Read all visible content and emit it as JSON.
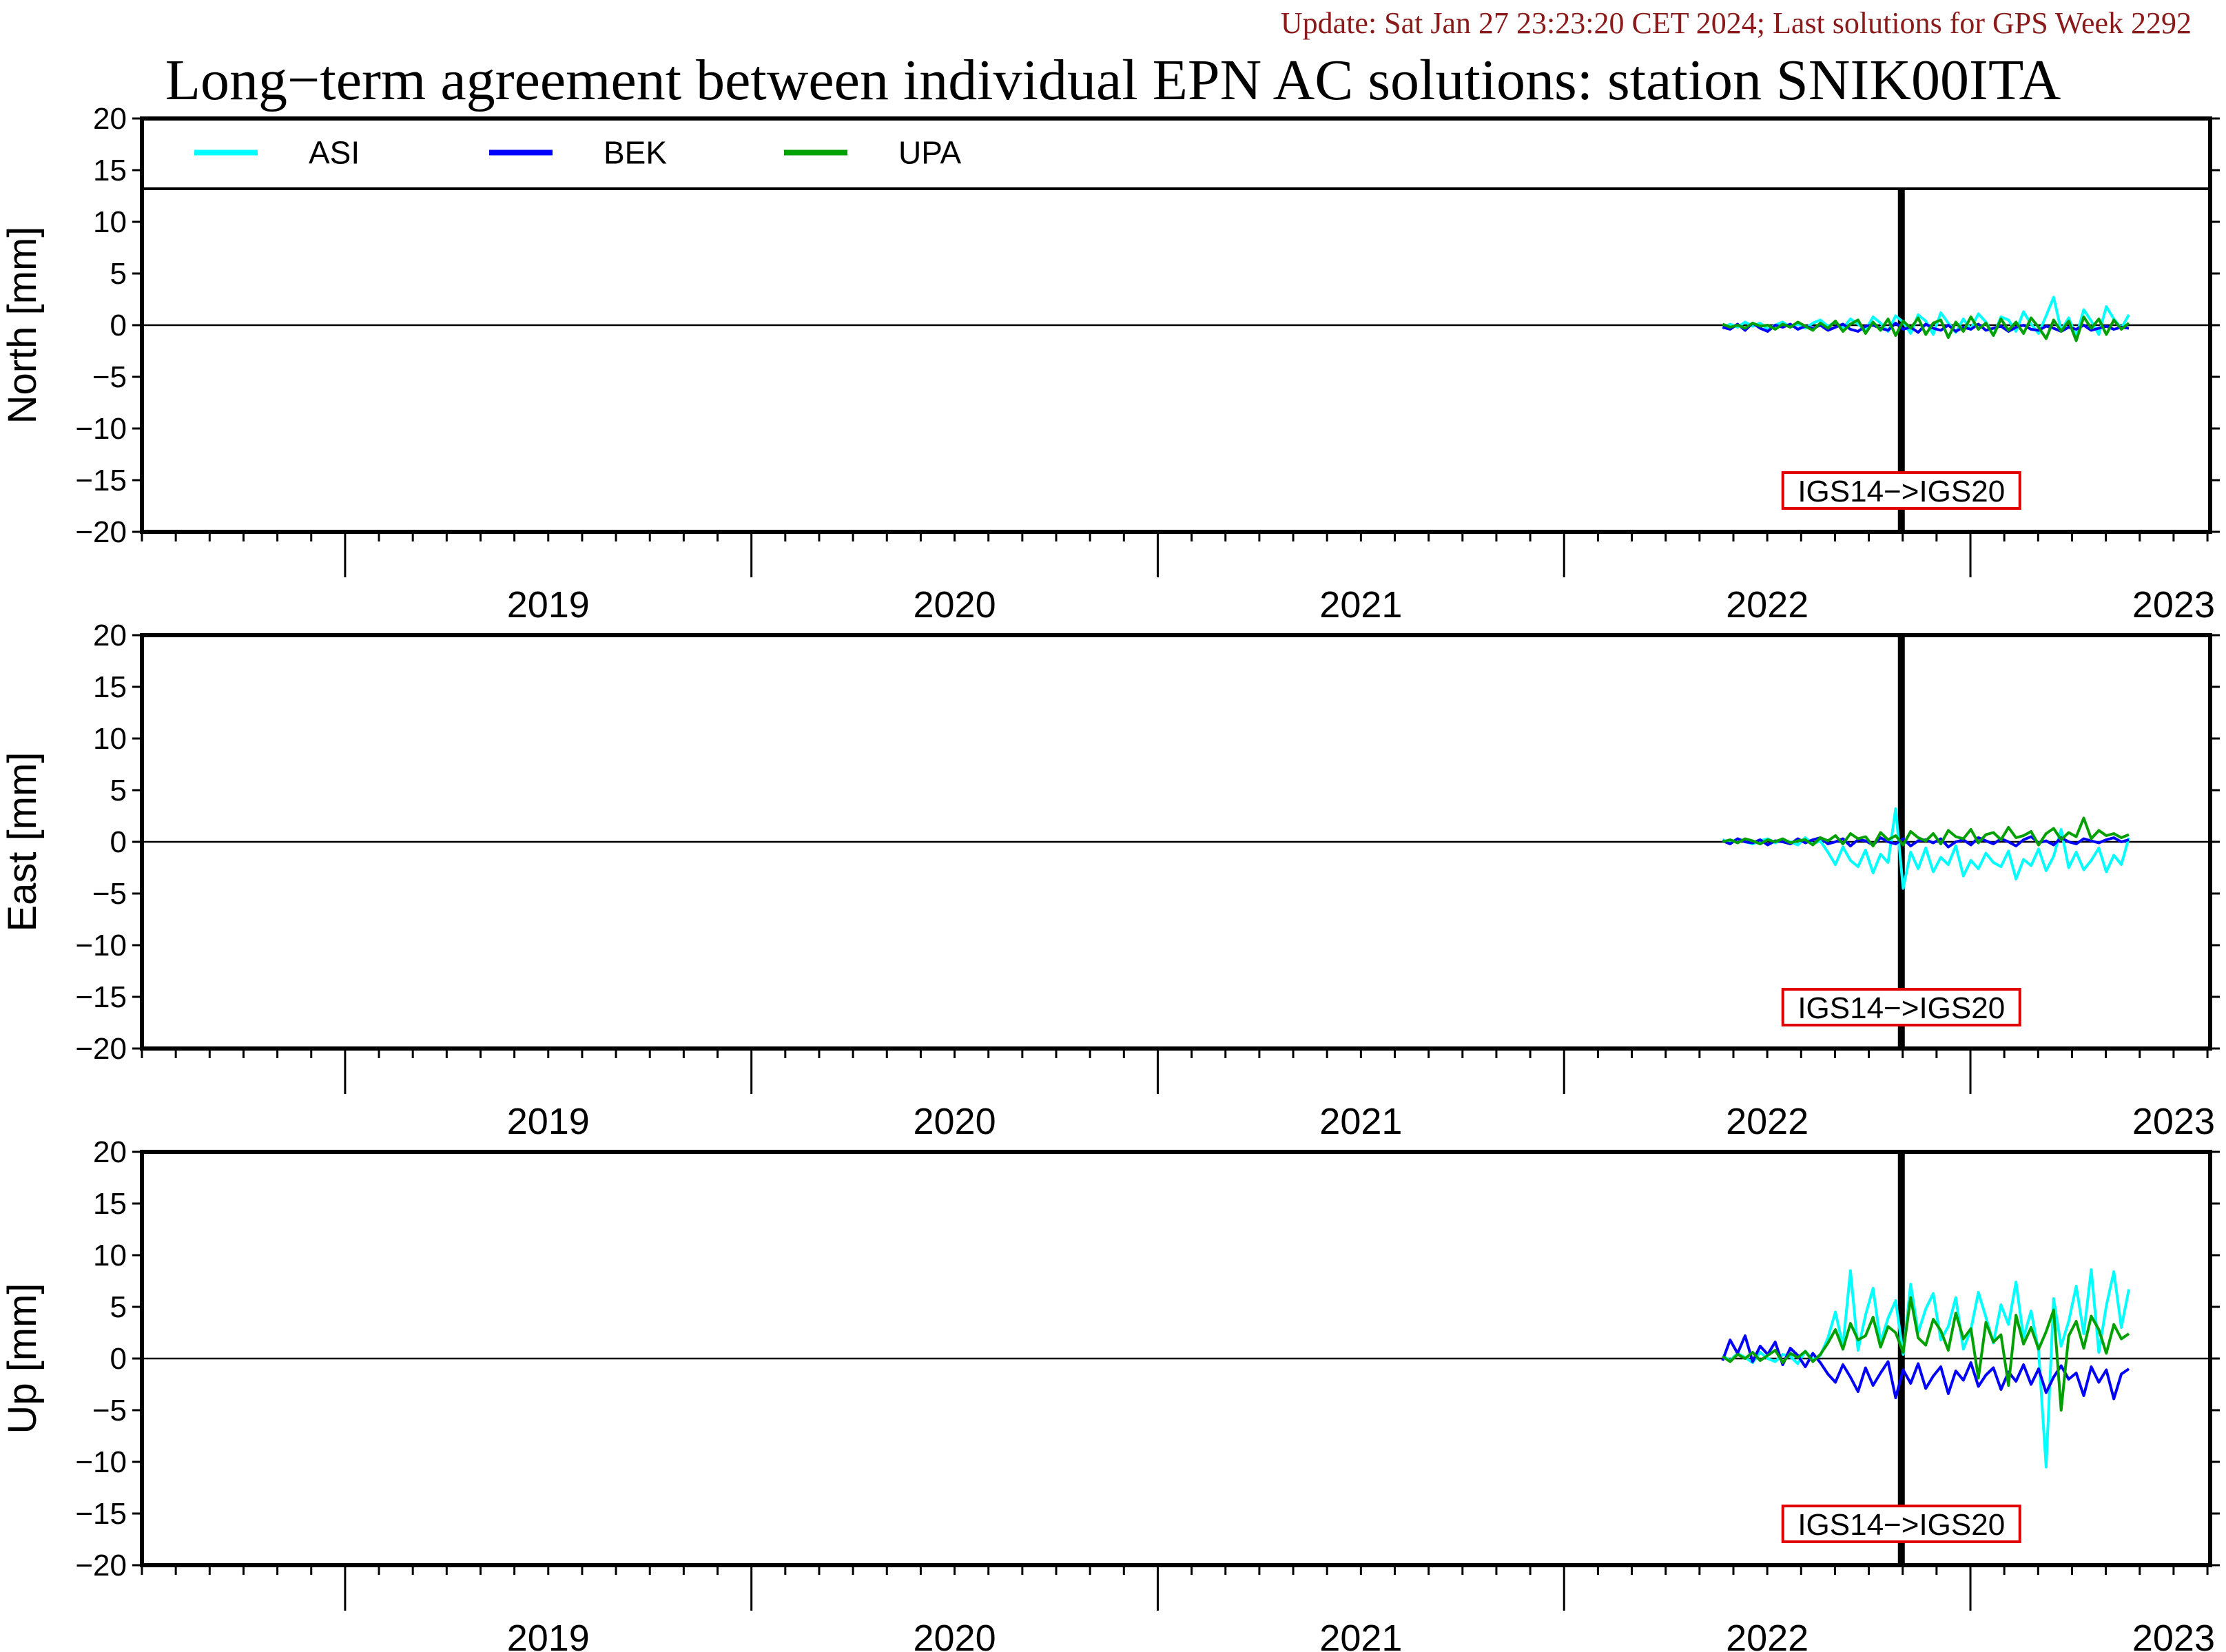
{
  "header": {
    "update": "Update: Sat Jan 27 23:23:20 CET 2024; Last solutions for GPS Week 2292",
    "title": "Long−term agreement between individual EPN AC solutions: station SNIK00ITA"
  },
  "legend": [
    {
      "name": "ASI",
      "color": "#00ffff"
    },
    {
      "name": "BEK",
      "color": "#0000ff"
    },
    {
      "name": "UPA",
      "color": "#00a000"
    }
  ],
  "annotation": {
    "label": "IGS14−>IGS20",
    "date": 2022.83,
    "box_color": "#e00000"
  },
  "chart_data": [
    {
      "type": "line",
      "ylabel": "North [mm]",
      "ylim": [
        -20,
        20
      ],
      "xlim": [
        2018.5,
        2023.59
      ],
      "yticks": [
        20,
        15,
        10,
        5,
        0,
        -5,
        -10,
        -15,
        -20
      ],
      "ytick_labels": [
        "20",
        "15",
        "10",
        "5",
        "0",
        "−5",
        "−10",
        "−15",
        "−20"
      ],
      "xtick_labels": [
        "2019",
        "2020",
        "2021",
        "2022",
        "2023"
      ],
      "x_start": 2022.39,
      "x_end": 2023.39,
      "series": [
        {
          "name": "ASI",
          "values": [
            -0.3,
            0.1,
            -0.2,
            0.3,
            -0.1,
            0.2,
            -0.4,
            0.0,
            0.3,
            -0.2,
            0.1,
            -0.3,
            0.2,
            0.5,
            -0.1,
            0.3,
            -0.3,
            0.6,
            0.1,
            -0.5,
            0.8,
            0.2,
            -0.6,
            0.9,
            0.3,
            -0.8,
            1.0,
            0.4,
            -0.9,
            1.2,
            0.2,
            -0.7,
            0.6,
            -0.4,
            1.1,
            0.3,
            -1.0,
            0.8,
            0.5,
            -0.6,
            1.3,
            0.1,
            -0.8,
            0.9,
            2.7,
            -0.5,
            0.7,
            -1.1,
            1.5,
            0.4,
            -0.9,
            1.8,
            0.6,
            -0.3,
            1.0
          ]
        },
        {
          "name": "BEK",
          "values": [
            -0.2,
            -0.4,
            0.1,
            -0.5,
            0.2,
            -0.3,
            -0.6,
            0.0,
            -0.2,
            0.1,
            -0.4,
            -0.1,
            -0.3,
            0.0,
            -0.5,
            -0.2,
            0.1,
            -0.4,
            -0.6,
            -0.1,
            0.0,
            -0.3,
            -0.5,
            0.2,
            -0.4,
            -0.2,
            -0.7,
            0.1,
            -0.3,
            -0.5,
            0.0,
            -0.6,
            -0.2,
            -0.4,
            0.1,
            -0.5,
            -0.3,
            -0.1,
            -0.6,
            -0.2,
            0.0,
            -0.4,
            -0.5,
            -0.1,
            -0.3,
            -0.6,
            -0.2,
            -0.4,
            0.0,
            -0.5,
            -0.3,
            -0.1,
            -0.4,
            -0.2,
            -0.3
          ]
        },
        {
          "name": "UPA",
          "values": [
            0.1,
            -0.2,
            0.0,
            -0.3,
            0.2,
            -0.1,
            0.0,
            -0.4,
            0.1,
            -0.2,
            0.3,
            -0.1,
            -0.5,
            0.2,
            -0.3,
            0.4,
            -0.6,
            0.1,
            0.5,
            -0.8,
            0.3,
            -0.5,
            0.6,
            -1.0,
            0.4,
            -0.3,
            0.7,
            -0.9,
            0.2,
            0.5,
            -1.2,
            0.3,
            -0.6,
            0.8,
            -0.4,
            0.2,
            -1.0,
            0.6,
            -0.5,
            0.3,
            -0.8,
            0.7,
            -0.2,
            -1.3,
            0.5,
            -0.6,
            0.4,
            -1.5,
            0.8,
            -0.3,
            0.6,
            -0.9,
            0.5,
            -0.4,
            0.2
          ]
        }
      ]
    },
    {
      "type": "line",
      "ylabel": "East [mm]",
      "ylim": [
        -20,
        20
      ],
      "xlim": [
        2018.5,
        2023.59
      ],
      "yticks": [
        20,
        15,
        10,
        5,
        0,
        -5,
        -10,
        -15,
        -20
      ],
      "ytick_labels": [
        "20",
        "15",
        "10",
        "5",
        "0",
        "−5",
        "−10",
        "−15",
        "−20"
      ],
      "xtick_labels": [
        "2019",
        "2020",
        "2021",
        "2022",
        "2023"
      ],
      "x_start": 2022.39,
      "x_end": 2023.39,
      "series": [
        {
          "name": "ASI",
          "values": [
            0.2,
            -0.1,
            0.3,
            0.0,
            -0.2,
            0.1,
            0.3,
            -0.1,
            0.2,
            0.0,
            -0.3,
            0.4,
            -0.2,
            0.1,
            -1.0,
            -2.2,
            -0.5,
            -1.8,
            -2.4,
            -0.8,
            -3.0,
            -1.2,
            -2.0,
            3.2,
            -4.5,
            -1.0,
            -2.6,
            -0.6,
            -2.9,
            -1.5,
            -2.2,
            -0.4,
            -3.3,
            -1.8,
            -2.6,
            -1.1,
            -2.0,
            -2.4,
            -0.9,
            -3.6,
            -1.7,
            -2.3,
            -0.7,
            -2.8,
            -1.4,
            1.2,
            -2.5,
            -1.0,
            -2.7,
            -1.8,
            -0.6,
            -2.9,
            -1.3,
            -2.2,
            0.4
          ]
        },
        {
          "name": "BEK",
          "values": [
            0.1,
            -0.2,
            0.3,
            0.0,
            -0.1,
            0.2,
            -0.3,
            0.1,
            0.0,
            -0.2,
            0.3,
            -0.1,
            0.2,
            0.4,
            -0.2,
            0.0,
            0.3,
            -0.4,
            0.2,
            0.1,
            -0.3,
            0.4,
            0.0,
            -0.2,
            0.3,
            -0.4,
            0.1,
            0.2,
            -0.1,
            0.3,
            -0.5,
            0.0,
            0.2,
            -0.3,
            0.4,
            0.1,
            -0.2,
            0.3,
            0.0,
            -0.4,
            0.2,
            0.5,
            -0.1,
            0.1,
            -0.3,
            0.4,
            0.0,
            -0.2,
            0.3,
            0.1,
            -0.1,
            0.2,
            0.4,
            0.0,
            0.2
          ]
        },
        {
          "name": "UPA",
          "values": [
            0.0,
            0.2,
            -0.1,
            0.3,
            0.1,
            -0.2,
            0.2,
            0.0,
            0.3,
            -0.1,
            0.1,
            0.2,
            -0.3,
            0.4,
            0.1,
            0.6,
            -0.2,
            0.8,
            0.3,
            0.5,
            -0.4,
            0.9,
            0.2,
            0.6,
            -0.3,
            1.0,
            0.4,
            0.1,
            0.8,
            -0.2,
            1.1,
            0.5,
            0.3,
            1.2,
            -0.1,
            0.7,
            0.9,
            0.2,
            1.4,
            0.4,
            0.6,
            1.0,
            -0.3,
            0.8,
            1.3,
            0.2,
            0.9,
            0.5,
            2.3,
            0.3,
            1.1,
            0.6,
            0.8,
            0.4,
            0.7
          ]
        }
      ]
    },
    {
      "type": "line",
      "ylabel": "Up [mm]",
      "ylim": [
        -20,
        20
      ],
      "xlim": [
        2018.5,
        2023.59
      ],
      "yticks": [
        20,
        15,
        10,
        5,
        0,
        -5,
        -10,
        -15,
        -20
      ],
      "ytick_labels": [
        "20",
        "15",
        "10",
        "5",
        "0",
        "−5",
        "−10",
        "−15",
        "−20"
      ],
      "xtick_labels": [
        "2019",
        "2020",
        "2021",
        "2022",
        "2023"
      ],
      "x_start": 2022.39,
      "x_end": 2023.39,
      "series": [
        {
          "name": "ASI",
          "values": [
            0.3,
            -0.2,
            0.5,
            0.1,
            -0.4,
            0.6,
            0.0,
            -0.3,
            0.4,
            0.2,
            -0.5,
            0.7,
            -0.1,
            0.3,
            2.0,
            4.5,
            1.2,
            8.5,
            0.8,
            4.2,
            6.8,
            1.6,
            3.9,
            5.6,
            0.4,
            7.2,
            2.5,
            4.8,
            6.3,
            1.8,
            3.1,
            5.9,
            0.9,
            2.8,
            6.4,
            4.0,
            1.5,
            5.2,
            3.3,
            7.4,
            2.0,
            4.6,
            0.7,
            -10.5,
            5.8,
            1.2,
            3.6,
            7.0,
            2.4,
            8.6,
            0.6,
            5.1,
            8.4,
            3.0,
            6.7
          ]
        },
        {
          "name": "BEK",
          "values": [
            -0.2,
            1.8,
            0.5,
            2.2,
            -0.3,
            1.2,
            0.4,
            1.6,
            -0.6,
            1.0,
            0.3,
            -0.8,
            0.5,
            -0.4,
            -1.5,
            -2.3,
            -0.6,
            -1.8,
            -3.2,
            -0.9,
            -2.6,
            -1.4,
            -0.3,
            -3.8,
            -1.1,
            -2.4,
            -0.5,
            -2.9,
            -1.7,
            -0.8,
            -3.4,
            -1.2,
            -2.1,
            -0.4,
            -2.7,
            -1.6,
            -0.9,
            -3.0,
            -1.3,
            -2.2,
            -0.6,
            -2.5,
            -1.0,
            -3.3,
            -1.8,
            -0.7,
            -2.0,
            -1.4,
            -3.6,
            -0.8,
            -2.3,
            -1.1,
            -3.9,
            -1.5,
            -1.0
          ]
        },
        {
          "name": "UPA",
          "values": [
            0.2,
            -0.3,
            0.4,
            0.0,
            0.6,
            -0.2,
            0.3,
            0.8,
            -0.4,
            0.5,
            0.1,
            0.7,
            -0.3,
            0.4,
            1.5,
            2.8,
            0.9,
            3.4,
            1.8,
            2.2,
            4.0,
            1.1,
            3.1,
            2.5,
            0.6,
            5.9,
            2.0,
            1.3,
            3.8,
            2.7,
            0.8,
            4.4,
            1.9,
            2.9,
            -1.9,
            3.5,
            1.6,
            2.3,
            -2.6,
            4.2,
            1.4,
            3.0,
            0.9,
            2.6,
            4.7,
            -5.0,
            2.2,
            3.6,
            1.0,
            4.1,
            2.8,
            0.5,
            3.3,
            1.9,
            2.4
          ]
        }
      ]
    }
  ]
}
